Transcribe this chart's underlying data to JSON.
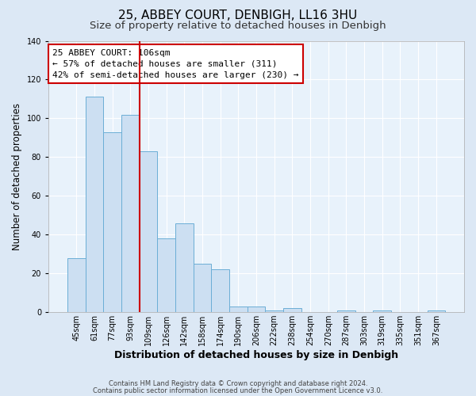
{
  "title1": "25, ABBEY COURT, DENBIGH, LL16 3HU",
  "title2": "Size of property relative to detached houses in Denbigh",
  "xlabel": "Distribution of detached houses by size in Denbigh",
  "ylabel": "Number of detached properties",
  "bar_labels": [
    "45sqm",
    "61sqm",
    "77sqm",
    "93sqm",
    "109sqm",
    "126sqm",
    "142sqm",
    "158sqm",
    "174sqm",
    "190sqm",
    "206sqm",
    "222sqm",
    "238sqm",
    "254sqm",
    "270sqm",
    "287sqm",
    "303sqm",
    "319sqm",
    "335sqm",
    "351sqm",
    "367sqm"
  ],
  "bar_values": [
    28,
    111,
    93,
    102,
    83,
    38,
    46,
    25,
    22,
    3,
    3,
    1,
    2,
    0,
    0,
    1,
    0,
    1,
    0,
    0,
    1
  ],
  "bar_color": "#ccdff2",
  "bar_edge_color": "#6baed6",
  "vline_color": "#cc0000",
  "vline_x": 4.5,
  "ylim": [
    0,
    140
  ],
  "yticks": [
    0,
    20,
    40,
    60,
    80,
    100,
    120,
    140
  ],
  "annotation_title": "25 ABBEY COURT: 106sqm",
  "annotation_line1": "← 57% of detached houses are smaller (311)",
  "annotation_line2": "42% of semi-detached houses are larger (230) →",
  "footer1": "Contains HM Land Registry data © Crown copyright and database right 2024.",
  "footer2": "Contains public sector information licensed under the Open Government Licence v3.0.",
  "bg_color": "#dce8f5",
  "plot_bg_color": "#e8f2fb",
  "grid_color": "#ffffff",
  "title1_fontsize": 11,
  "title2_fontsize": 9.5,
  "xlabel_fontsize": 9,
  "ylabel_fontsize": 8.5,
  "tick_fontsize": 7,
  "annotation_box_edge": "#cc0000",
  "annotation_box_fill": "#ffffff",
  "annotation_fontsize": 8
}
